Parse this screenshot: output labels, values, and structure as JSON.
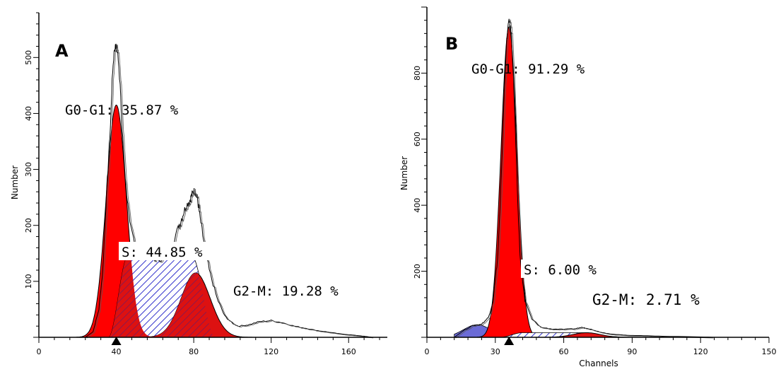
{
  "colors": {
    "g0g1_fill": "#ff0000",
    "s_hatch": "#3333cc",
    "g2m_fill": "#dd1111",
    "outline": "#000000",
    "debris_fill": "#6b6bd6"
  },
  "panels": [
    {
      "letter": "A",
      "ylabel": "Number",
      "xlabel": "",
      "yticks": [
        "100",
        "200",
        "300",
        "400",
        "500"
      ],
      "xticks": [
        "0",
        "40",
        "80",
        "120",
        "160"
      ],
      "labels": {
        "g0g1": "G0-G1: 35.87 %",
        "s": "S: 44.85 %",
        "g2m": "G2-M: 19.28 %"
      }
    },
    {
      "letter": "B",
      "ylabel": "Number",
      "xlabel": "Channels",
      "yticks": [
        "200",
        "400",
        "600",
        "800"
      ],
      "xticks": [
        "0",
        "30",
        "60",
        "90",
        "120",
        "150"
      ],
      "labels": {
        "g0g1": "G0-G1: 91.29 %",
        "s": "S: 6.00 %",
        "g2m": "G2-M: 2.71 %"
      }
    }
  ],
  "chart_data": [
    {
      "type": "area",
      "panel": "A",
      "title": "",
      "xlabel": "",
      "ylabel": "Number",
      "xlim": [
        0,
        180
      ],
      "ylim": [
        0,
        580
      ],
      "x_ticks": [
        0,
        40,
        80,
        120,
        160
      ],
      "y_ticks": [
        100,
        200,
        300,
        400,
        500
      ],
      "marker_x": 40,
      "series": [
        {
          "name": "G0-G1: 35.87 %",
          "kind": "gaussian",
          "mean": 40,
          "sd": 5.2,
          "peak": 415
        },
        {
          "name": "G2-M: 19.28 %",
          "kind": "gaussian",
          "mean": 81,
          "sd": 7.5,
          "peak": 115
        },
        {
          "name": "S: 44.85 %",
          "kind": "plateau",
          "from": 40,
          "to": 81,
          "level": 145
        },
        {
          "name": "histogram",
          "kind": "line",
          "x": [
            24,
            28,
            31,
            33,
            35,
            37,
            38,
            39,
            40,
            41,
            42,
            43,
            45,
            47,
            50,
            53,
            56,
            60,
            64,
            68,
            72,
            74,
            76,
            78,
            79,
            80,
            81,
            82,
            83,
            85,
            88,
            92,
            96,
            100,
            103,
            108,
            114,
            120,
            126,
            132,
            138,
            144,
            150,
            156,
            162,
            168,
            172
          ],
          "y": [
            0,
            10,
            50,
            120,
            260,
            380,
            470,
            515,
            520,
            500,
            450,
            370,
            270,
            200,
            165,
            150,
            145,
            140,
            140,
            158,
            195,
            215,
            235,
            245,
            255,
            262,
            258,
            245,
            220,
            175,
            120,
            70,
            38,
            25,
            20,
            22,
            28,
            30,
            26,
            20,
            16,
            12,
            9,
            6,
            4,
            2,
            0
          ]
        }
      ]
    },
    {
      "type": "area",
      "panel": "B",
      "title": "",
      "xlabel": "Channels",
      "ylabel": "Number",
      "xlim": [
        0,
        150
      ],
      "ylim": [
        0,
        1000
      ],
      "x_ticks": [
        0,
        30,
        60,
        90,
        120,
        150
      ],
      "y_ticks": [
        200,
        400,
        600,
        800
      ],
      "marker_x": 36,
      "series": [
        {
          "name": "G0-G1: 91.29 %",
          "kind": "gaussian",
          "mean": 36,
          "sd": 3.5,
          "peak": 940
        },
        {
          "name": "G2-M: 2.71 %",
          "kind": "gaussian",
          "mean": 70,
          "sd": 6,
          "peak": 14
        },
        {
          "name": "S: 6.00 %",
          "kind": "plateau",
          "from": 36,
          "to": 70,
          "level": 14
        },
        {
          "name": "histogram",
          "kind": "line",
          "x": [
            12,
            16,
            20,
            24,
            27,
            29,
            31,
            32,
            33,
            34,
            35,
            36,
            37,
            38,
            39,
            40,
            41,
            43,
            46,
            50,
            55,
            60,
            65,
            68,
            70,
            73,
            77,
            82,
            88,
            95,
            105,
            115,
            125
          ],
          "y": [
            0,
            20,
            35,
            40,
            60,
            110,
            240,
            380,
            560,
            760,
            900,
            965,
            920,
            780,
            580,
            380,
            230,
            110,
            55,
            30,
            25,
            24,
            26,
            30,
            28,
            22,
            14,
            9,
            6,
            5,
            3,
            2,
            0
          ]
        }
      ]
    }
  ]
}
